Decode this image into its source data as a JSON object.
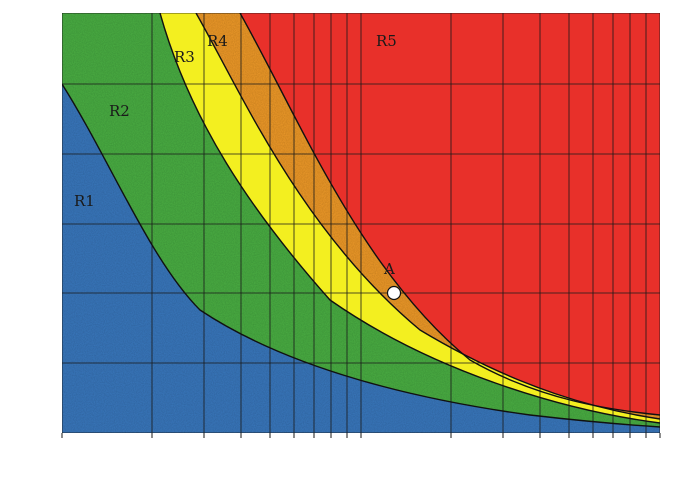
{
  "diagram": {
    "type": "risk-zone-map",
    "x_scale": "log",
    "grid": true,
    "regions": [
      {
        "id": "R1",
        "label": "R1",
        "color": "#3a78bd"
      },
      {
        "id": "R2",
        "label": "R2",
        "color": "#4caf45"
      },
      {
        "id": "R3",
        "label": "R3",
        "color": "#f3ef20"
      },
      {
        "id": "R4",
        "label": "R4",
        "color": "#ee9a2a"
      },
      {
        "id": "R5",
        "label": "R5",
        "color": "#e8302a"
      }
    ],
    "point": {
      "label": "A"
    },
    "colors": {
      "grid": "#1a1a1a",
      "boundary": "#111111",
      "point_fill": "#ffffff"
    }
  }
}
